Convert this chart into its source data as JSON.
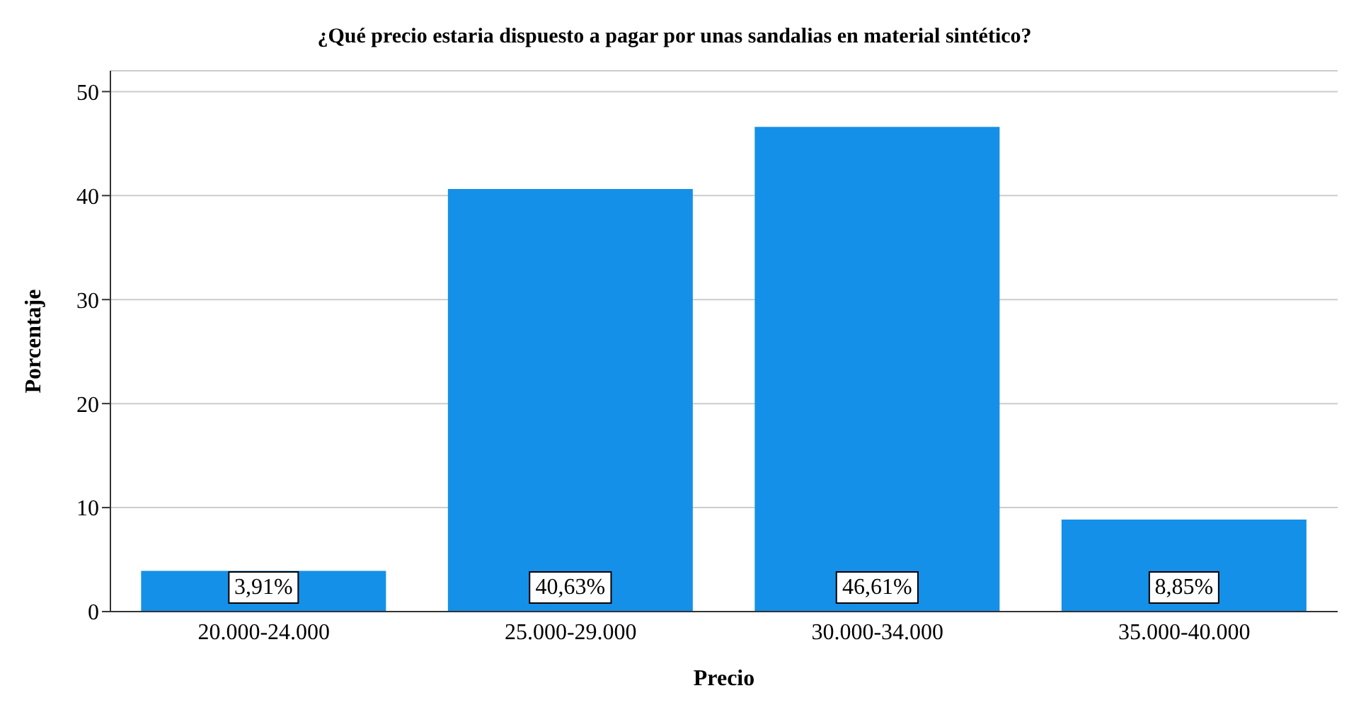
{
  "chart_data": {
    "type": "bar",
    "title": "¿Qué precio estaria dispuesto a pagar por unas sandalias en material sintético?",
    "xlabel": "Precio",
    "ylabel": "Porcentaje",
    "categories": [
      "20.000-24.000",
      "25.000-29.000",
      "30.000-34.000",
      "35.000-40.000"
    ],
    "values": [
      3.91,
      40.63,
      46.61,
      8.85
    ],
    "value_labels": [
      "3,91%",
      "40,63%",
      "46,61%",
      "8,85%"
    ],
    "color": "#1490e8",
    "ylim": [
      0,
      52
    ],
    "yticks": [
      0,
      10,
      20,
      30,
      40,
      50
    ],
    "grid": "y"
  }
}
